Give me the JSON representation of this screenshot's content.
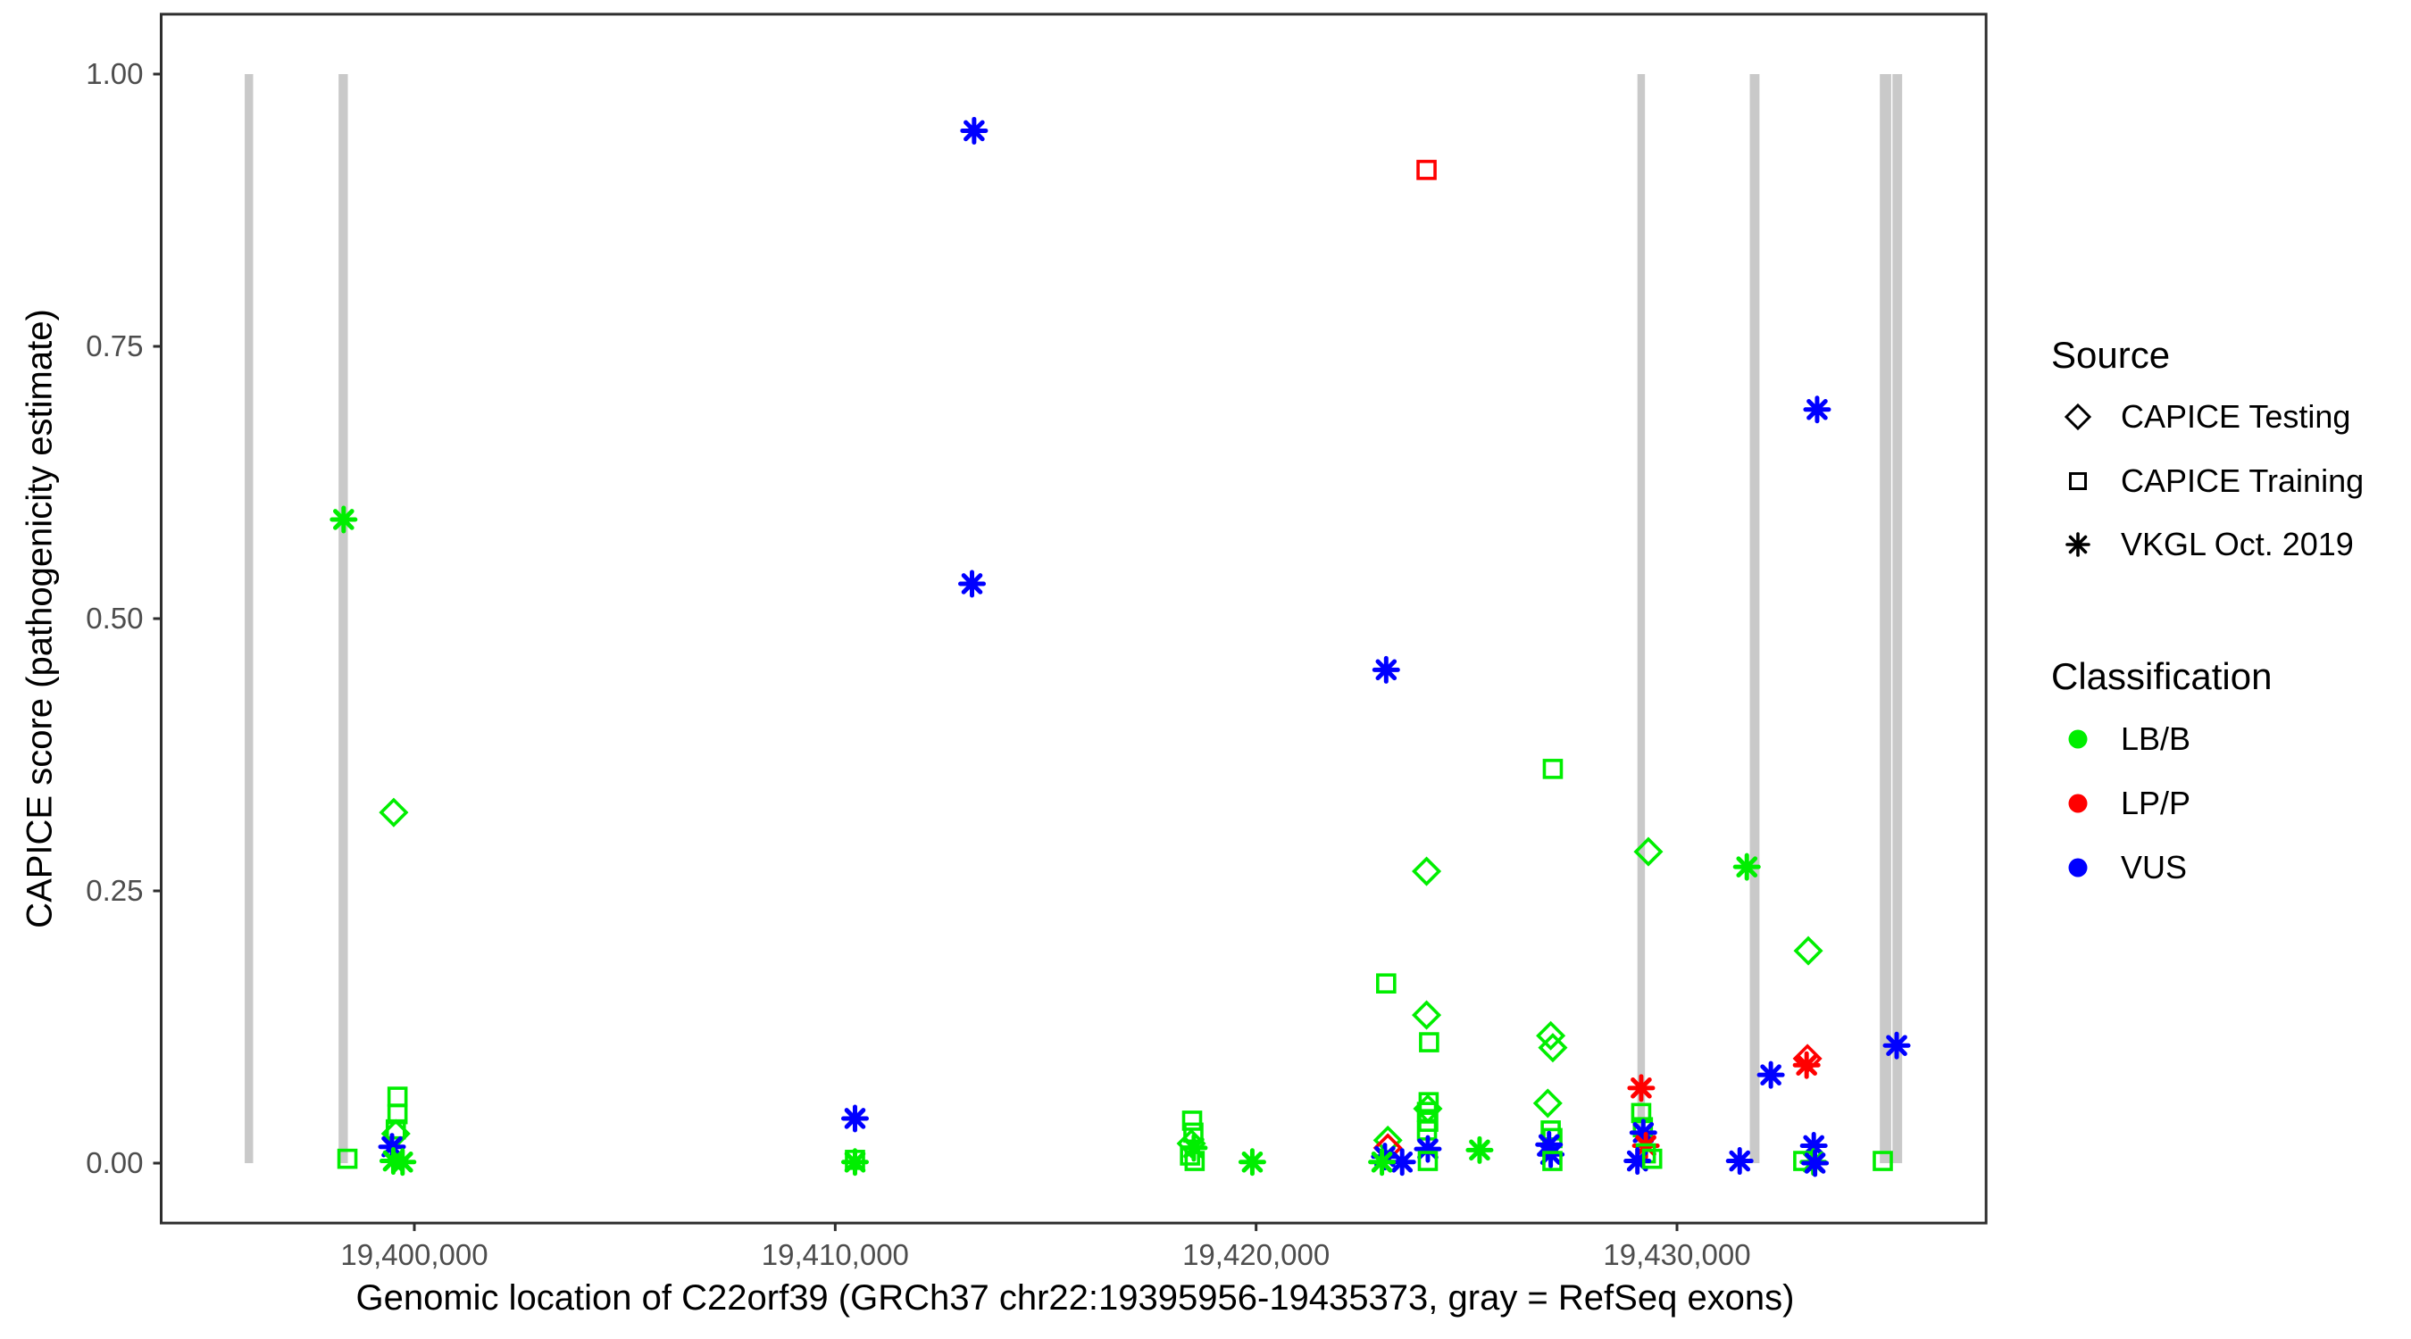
{
  "chart_data": {
    "type": "scatter",
    "title": "",
    "xlabel": "Genomic location of C22orf39 (GRCh37 chr22:19395956-19435373, gray = RefSeq exons)",
    "ylabel": "CAPICE score (pathogenicity estimate)",
    "x_domain": [
      19393985,
      19437344
    ],
    "y_domain": [
      -0.055,
      1.055
    ],
    "grid": "off",
    "x_ticks": [
      {
        "value": 19400000,
        "label": "19,400,000"
      },
      {
        "value": 19410000,
        "label": "19,410,000"
      },
      {
        "value": 19420000,
        "label": "19,420,000"
      },
      {
        "value": 19430000,
        "label": "19,430,000"
      }
    ],
    "y_ticks": [
      {
        "value": 0.0,
        "label": "0.00"
      },
      {
        "value": 0.25,
        "label": "0.25"
      },
      {
        "value": 0.5,
        "label": "0.50"
      },
      {
        "value": 0.75,
        "label": "0.75"
      },
      {
        "value": 1.0,
        "label": "1.00"
      }
    ],
    "exon_color": "#c9c9c9",
    "exon_bars": [
      {
        "start": 19395970,
        "end": 19396170
      },
      {
        "start": 19398200,
        "end": 19398420
      },
      {
        "start": 19429060,
        "end": 19429240
      },
      {
        "start": 19431730,
        "end": 19431960
      },
      {
        "start": 19434820,
        "end": 19435090
      },
      {
        "start": 19435120,
        "end": 19435350
      }
    ],
    "shape_by_source": {
      "testing": "diamond",
      "training": "square",
      "vkgl": "asterisk"
    },
    "color_by_class": {
      "LB/B": "#00ee00",
      "LP/P": "#ff0000",
      "VUS": "#0000ff"
    },
    "point_format": [
      "genomic_position",
      "capice_score",
      "source",
      "classification"
    ],
    "points": [
      [
        19398320,
        0.591,
        "vkgl",
        "LB/B"
      ],
      [
        19399510,
        0.322,
        "testing",
        "LB/B"
      ],
      [
        19398410,
        0.004,
        "training",
        "LB/B"
      ],
      [
        19399600,
        0.061,
        "training",
        "LB/B"
      ],
      [
        19399600,
        0.045,
        "training",
        "LB/B"
      ],
      [
        19399560,
        0.031,
        "training",
        "LB/B"
      ],
      [
        19399560,
        0.027,
        "testing",
        "LB/B"
      ],
      [
        19399470,
        0.015,
        "vkgl",
        "VUS"
      ],
      [
        19399500,
        0.002,
        "vkgl",
        "LB/B"
      ],
      [
        19399720,
        0.001,
        "vkgl",
        "LB/B"
      ],
      [
        19410470,
        0.041,
        "vkgl",
        "VUS"
      ],
      [
        19410470,
        0.003,
        "training",
        "LB/B"
      ],
      [
        19410470,
        0.001,
        "vkgl",
        "LB/B"
      ],
      [
        19413300,
        0.948,
        "vkgl",
        "VUS"
      ],
      [
        19413250,
        0.532,
        "vkgl",
        "VUS"
      ],
      [
        19418480,
        0.039,
        "training",
        "LB/B"
      ],
      [
        19418510,
        0.028,
        "training",
        "LB/B"
      ],
      [
        19418460,
        0.018,
        "testing",
        "LB/B"
      ],
      [
        19418520,
        0.014,
        "vkgl",
        "LB/B"
      ],
      [
        19418430,
        0.007,
        "training",
        "LB/B"
      ],
      [
        19418540,
        0.002,
        "training",
        "LB/B"
      ],
      [
        19419910,
        0.001,
        "vkgl",
        "LB/B"
      ],
      [
        19423090,
        0.453,
        "vkgl",
        "VUS"
      ],
      [
        19423090,
        0.165,
        "training",
        "LB/B"
      ],
      [
        19423130,
        0.021,
        "testing",
        "LB/B"
      ],
      [
        19423130,
        0.014,
        "testing",
        "LP/P"
      ],
      [
        19423060,
        0.006,
        "vkgl",
        "VUS"
      ],
      [
        19423470,
        0.001,
        "vkgl",
        "VUS"
      ],
      [
        19422990,
        0.001,
        "vkgl",
        "LB/B"
      ],
      [
        19424050,
        0.912,
        "training",
        "LP/P"
      ],
      [
        19424050,
        0.268,
        "testing",
        "LB/B"
      ],
      [
        19424050,
        0.136,
        "testing",
        "LB/B"
      ],
      [
        19424110,
        0.111,
        "training",
        "LB/B"
      ],
      [
        19424100,
        0.056,
        "training",
        "LB/B"
      ],
      [
        19424080,
        0.05,
        "testing",
        "LB/B"
      ],
      [
        19424060,
        0.047,
        "training",
        "LB/B"
      ],
      [
        19424090,
        0.038,
        "training",
        "LB/B"
      ],
      [
        19424060,
        0.03,
        "training",
        "LB/B"
      ],
      [
        19424080,
        0.013,
        "vkgl",
        "VUS"
      ],
      [
        19424080,
        0.002,
        "training",
        "LB/B"
      ],
      [
        19425310,
        0.012,
        "vkgl",
        "LB/B"
      ],
      [
        19427050,
        0.362,
        "training",
        "LB/B"
      ],
      [
        19427000,
        0.117,
        "testing",
        "LB/B"
      ],
      [
        19427050,
        0.106,
        "testing",
        "LB/B"
      ],
      [
        19426930,
        0.055,
        "testing",
        "LB/B"
      ],
      [
        19427000,
        0.03,
        "training",
        "LB/B"
      ],
      [
        19427040,
        0.023,
        "training",
        "LB/B"
      ],
      [
        19426960,
        0.017,
        "vkgl",
        "VUS"
      ],
      [
        19427000,
        0.008,
        "vkgl",
        "VUS"
      ],
      [
        19427040,
        0.002,
        "training",
        "LB/B"
      ],
      [
        19429320,
        0.286,
        "testing",
        "LB/B"
      ],
      [
        19429150,
        0.069,
        "vkgl",
        "LP/P"
      ],
      [
        19429150,
        0.046,
        "training",
        "LB/B"
      ],
      [
        19429190,
        0.033,
        "training",
        "LB/B"
      ],
      [
        19429200,
        0.028,
        "vkgl",
        "VUS"
      ],
      [
        19429260,
        0.016,
        "vkgl",
        "LP/P"
      ],
      [
        19429260,
        0.009,
        "training",
        "LB/B"
      ],
      [
        19429060,
        0.002,
        "vkgl",
        "VUS"
      ],
      [
        19429410,
        0.004,
        "training",
        "LB/B"
      ],
      [
        19431660,
        0.272,
        "vkgl",
        "LB/B"
      ],
      [
        19431490,
        0.002,
        "vkgl",
        "VUS"
      ],
      [
        19432230,
        0.081,
        "vkgl",
        "VUS"
      ],
      [
        19433330,
        0.692,
        "vkgl",
        "VUS"
      ],
      [
        19433120,
        0.195,
        "testing",
        "LB/B"
      ],
      [
        19433100,
        0.096,
        "testing",
        "LP/P"
      ],
      [
        19433080,
        0.09,
        "vkgl",
        "LP/P"
      ],
      [
        19433250,
        0.016,
        "vkgl",
        "VUS"
      ],
      [
        19433000,
        0.002,
        "training",
        "LB/B"
      ],
      [
        19433240,
        0.001,
        "vkgl",
        "LB/B"
      ],
      [
        19433280,
        0.0,
        "vkgl",
        "VUS"
      ],
      [
        19434890,
        0.002,
        "training",
        "LB/B"
      ],
      [
        19435220,
        0.108,
        "vkgl",
        "VUS"
      ]
    ]
  },
  "legend": {
    "source": {
      "title": "Source",
      "items": [
        {
          "key": "testing",
          "label": "CAPICE Testing",
          "shape": "diamond"
        },
        {
          "key": "training",
          "label": "CAPICE Training",
          "shape": "square"
        },
        {
          "key": "vkgl",
          "label": "VKGL Oct. 2019",
          "shape": "asterisk"
        }
      ]
    },
    "classification": {
      "title": "Classification",
      "items": [
        {
          "key": "LB/B",
          "label": "LB/B",
          "color": "#00ee00"
        },
        {
          "key": "LP/P",
          "label": "LP/P",
          "color": "#ff0000"
        },
        {
          "key": "VUS",
          "label": "VUS",
          "color": "#0000ff"
        }
      ]
    }
  },
  "style": {
    "tick_text_color": "#4d4d4d",
    "axis_line_color": "#2e2e2e",
    "background": "#ffffff"
  }
}
